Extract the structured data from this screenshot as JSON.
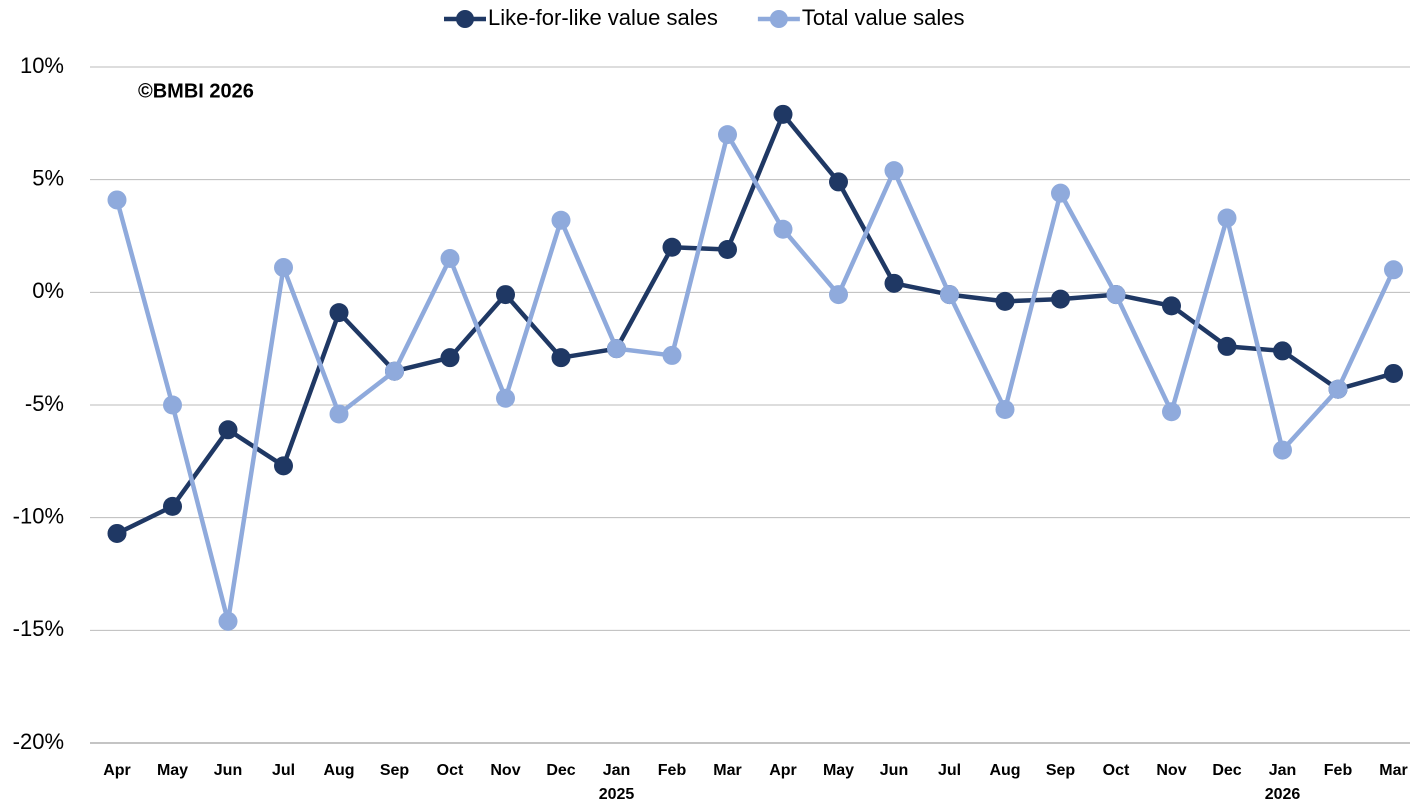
{
  "chart_data": {
    "type": "line",
    "annotation": "©BMBI 2026",
    "categories": [
      "Apr",
      "May",
      "Jun",
      "Jul",
      "Aug",
      "Sep",
      "Oct",
      "Nov",
      "Dec",
      "Jan",
      "Feb",
      "Mar",
      "Apr",
      "May",
      "Jun",
      "Jul",
      "Aug",
      "Sep",
      "Oct",
      "Nov",
      "Dec",
      "Jan",
      "Feb",
      "Mar"
    ],
    "years": [
      null,
      null,
      null,
      null,
      null,
      null,
      null,
      null,
      null,
      "2025",
      null,
      null,
      null,
      null,
      null,
      null,
      null,
      null,
      null,
      null,
      null,
      "2026",
      null,
      null
    ],
    "series": [
      {
        "name": "Like-for-like value sales",
        "color": "#1f3864",
        "values": [
          -10.7,
          -9.5,
          -6.1,
          -7.7,
          -0.9,
          -3.5,
          -2.9,
          -0.1,
          -2.9,
          -2.5,
          2.0,
          1.9,
          7.9,
          4.9,
          0.4,
          -0.1,
          -0.4,
          -0.3,
          -0.1,
          -0.6,
          -2.4,
          -2.6,
          -4.3,
          -3.6
        ]
      },
      {
        "name": "Total value sales",
        "color": "#8faadc",
        "values": [
          4.1,
          -5.0,
          -14.6,
          1.1,
          -5.4,
          -3.5,
          1.5,
          -4.7,
          3.2,
          -2.5,
          -2.8,
          7.0,
          2.8,
          -0.1,
          5.4,
          -0.1,
          -5.2,
          4.4,
          -0.1,
          -5.3,
          3.3,
          -7.0,
          -4.3,
          1.0
        ]
      }
    ],
    "ylim": [
      -20,
      10
    ],
    "yticks": [
      {
        "value": -20,
        "label": "-20%"
      },
      {
        "value": -15,
        "label": "-15%"
      },
      {
        "value": -10,
        "label": "-10%"
      },
      {
        "value": -5,
        "label": "-5%"
      },
      {
        "value": 0,
        "label": "0%"
      },
      {
        "value": 5,
        "label": "5%"
      },
      {
        "value": 10,
        "label": "10%"
      }
    ],
    "grid": true,
    "legend": "top"
  }
}
